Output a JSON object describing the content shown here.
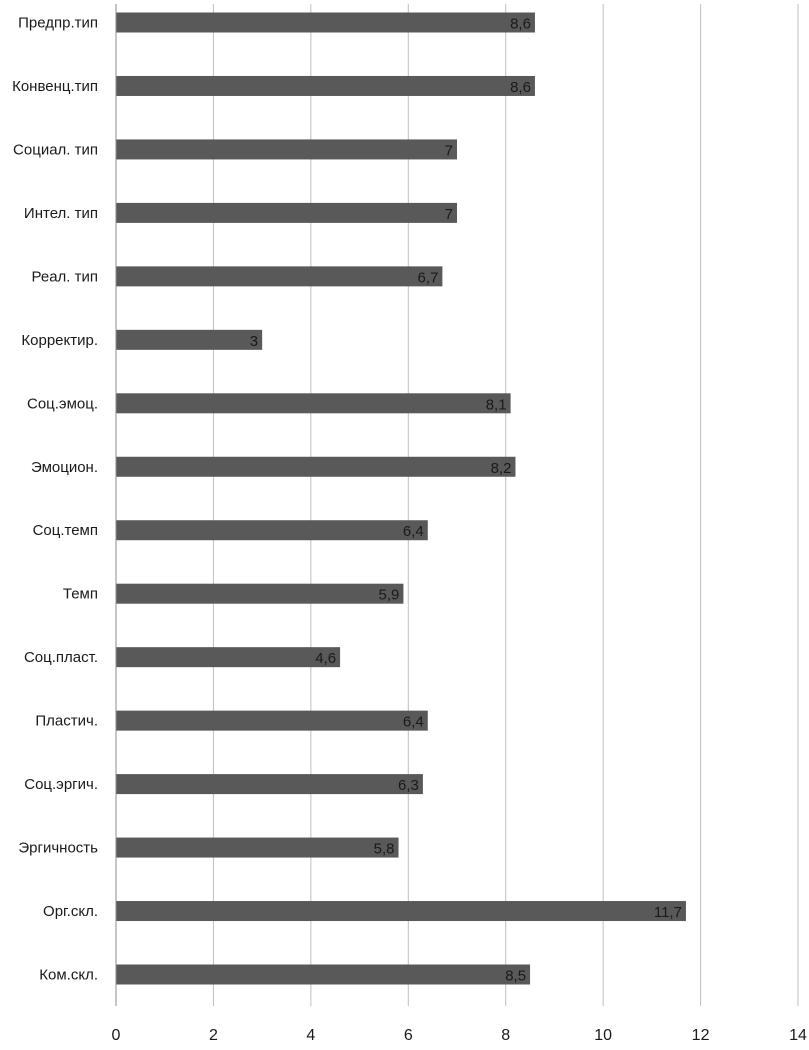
{
  "chart_data": {
    "type": "bar",
    "orientation": "horizontal",
    "title": "",
    "xlabel": "",
    "ylabel": "",
    "xlim": [
      0,
      14
    ],
    "x_ticks": [
      0,
      2,
      4,
      6,
      8,
      10,
      12,
      14
    ],
    "grid": "vertical",
    "legend": "none",
    "bar_color": "#595959",
    "grid_color": "#bfbfbf",
    "categories": [
      "Предпр.тип",
      "Конвенц.тип",
      "Социал. тип",
      "Интел. тип",
      "Реал. тип",
      "Корректир.",
      "Соц.эмоц.",
      "Эмоцион.",
      "Соц.темп",
      "Темп",
      "Соц.пласт.",
      "Пластич.",
      "Соц.эргич.",
      "Эргичность",
      "Орг.скл.",
      "Ком.скл."
    ],
    "values": [
      8.6,
      8.6,
      7,
      7,
      6.7,
      3,
      8.1,
      8.2,
      6.4,
      5.9,
      4.6,
      6.4,
      6.3,
      5.8,
      11.7,
      8.5
    ],
    "data_labels": [
      "8,6",
      "8,6",
      "7",
      "7",
      "6,7",
      "3",
      "8,1",
      "8,2",
      "6,4",
      "5,9",
      "4,6",
      "6,4",
      "6,3",
      "5,8",
      "11,7",
      "8,5"
    ]
  }
}
